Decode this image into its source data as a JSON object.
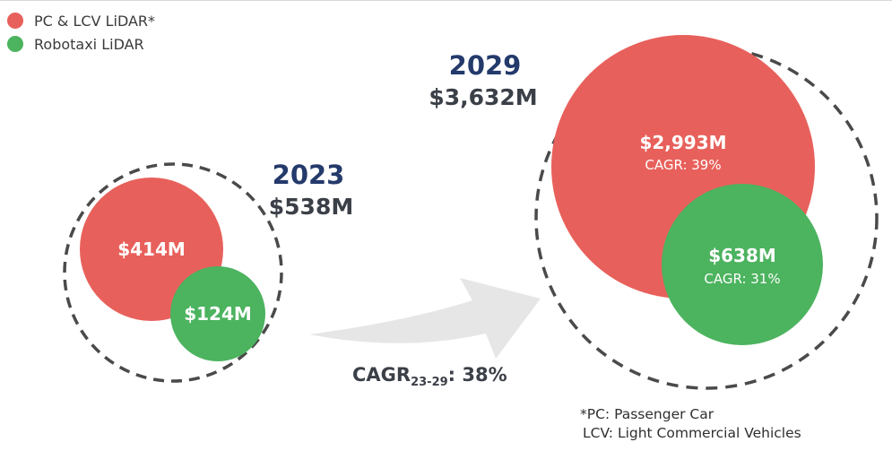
{
  "legend": [
    {
      "label": "PC & LCV LiDAR*",
      "color": "#e8605b"
    },
    {
      "label": "Robotaxi LiDAR",
      "color": "#4cb35f"
    }
  ],
  "chart_data": {
    "type": "bubble",
    "series": [
      {
        "name": "PC & LCV LiDAR*",
        "color": "#e8605b"
      },
      {
        "name": "Robotaxi LiDAR",
        "color": "#4cb35f"
      }
    ],
    "groups": [
      {
        "year": "2023",
        "total": "$538M",
        "total_value": 538,
        "items": [
          {
            "series": "PC & LCV LiDAR*",
            "label": "$414M",
            "value": 414,
            "cagr": ""
          },
          {
            "series": "Robotaxi LiDAR",
            "label": "$124M",
            "value": 124,
            "cagr": ""
          }
        ]
      },
      {
        "year": "2029",
        "total": "$3,632M",
        "total_value": 3632,
        "items": [
          {
            "series": "PC & LCV LiDAR*",
            "label": "$2,993M",
            "value": 2993,
            "cagr": "CAGR: 39%"
          },
          {
            "series": "Robotaxi LiDAR",
            "label": "$638M",
            "value": 638,
            "cagr": "CAGR: 31%"
          }
        ]
      }
    ],
    "overall_cagr": {
      "prefix": "CAGR",
      "subscript": "23-29",
      "value": ": 38%"
    },
    "value_unit": "$M"
  },
  "footnote": {
    "line1": "*PC: Passenger Car",
    "line2": "LCV: Light Commercial Vehicles"
  },
  "colors": {
    "year": "#243a6b",
    "total": "#3b3f47",
    "arrow": "#e6e6e6",
    "dashed": "#4a4a4a"
  }
}
